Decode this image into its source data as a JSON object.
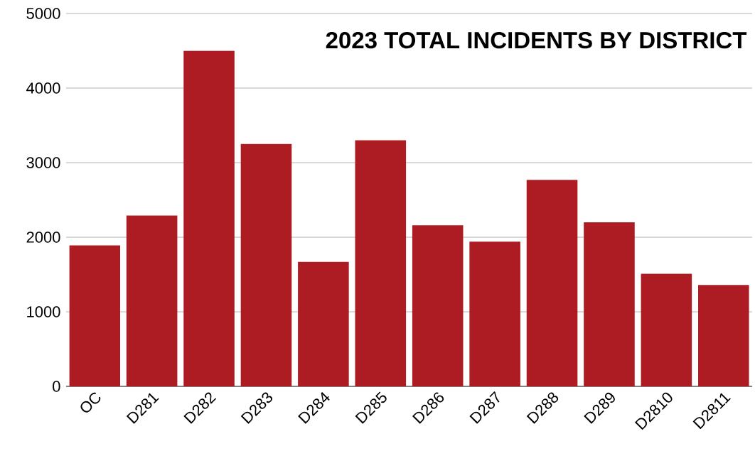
{
  "chart_data": {
    "type": "bar",
    "title": "2023 TOTAL INCIDENTS BY DISTRICT",
    "categories": [
      "OC",
      "D281",
      "D282",
      "D283",
      "D284",
      "D285",
      "D286",
      "D287",
      "D288",
      "D289",
      "D2810",
      "D2811"
    ],
    "values": [
      1890,
      2290,
      4500,
      3250,
      1670,
      3300,
      2160,
      1940,
      2770,
      2200,
      1510,
      1360
    ],
    "color": "#ac1c22",
    "ylim": [
      0,
      5000
    ],
    "yticks": [
      0,
      1000,
      2000,
      3000,
      4000,
      5000
    ],
    "grid": "y"
  }
}
